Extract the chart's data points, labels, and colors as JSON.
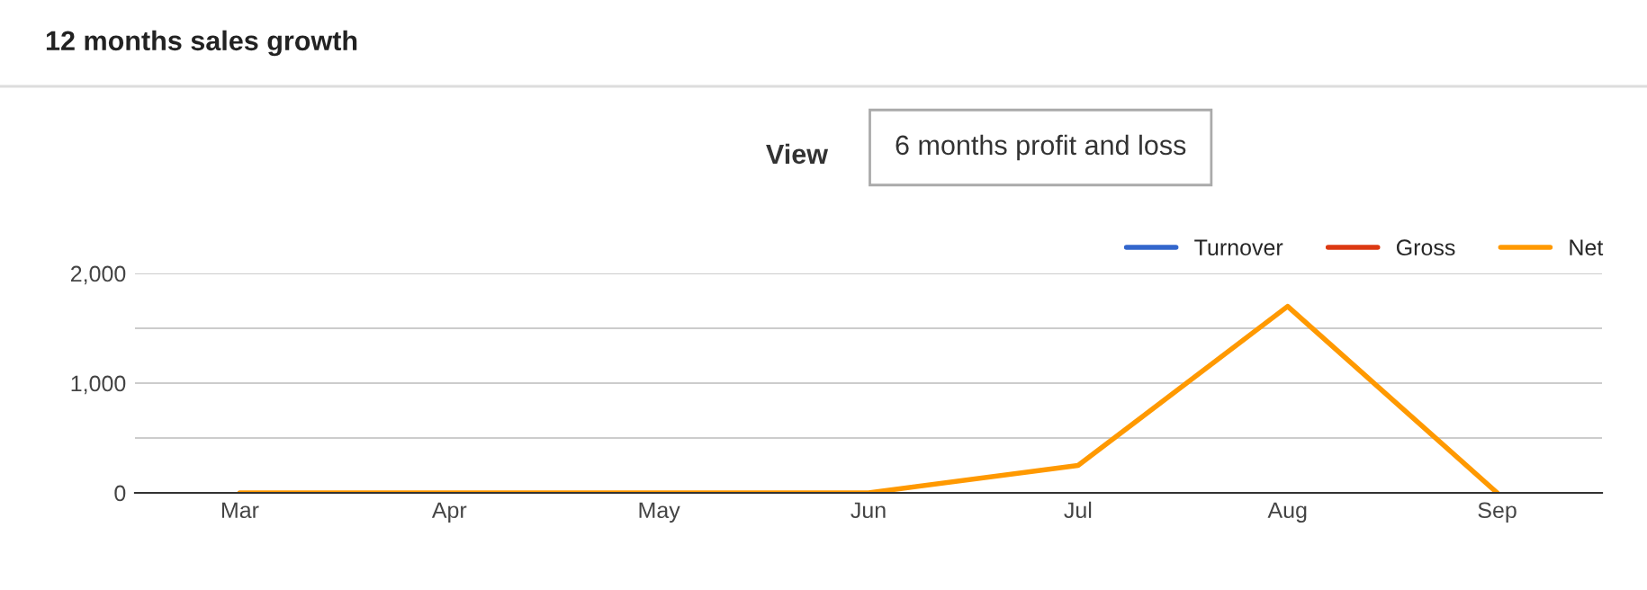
{
  "chart_data": {
    "type": "line",
    "title": "12 months sales growth",
    "annotations": [
      "View",
      "6 months profit and loss"
    ],
    "categories": [
      "Mar",
      "Apr",
      "May",
      "Jun",
      "Jul",
      "Aug",
      "Sep"
    ],
    "series": [
      {
        "name": "Turnover",
        "color": "#3366cc",
        "values": [
          null,
          null,
          null,
          null,
          null,
          null,
          null
        ]
      },
      {
        "name": "Gross",
        "color": "#dc3912",
        "values": [
          null,
          null,
          null,
          null,
          null,
          null,
          null
        ]
      },
      {
        "name": "Net",
        "color": "#ff9900",
        "values": [
          0,
          0,
          0,
          0,
          250,
          1700,
          0
        ]
      }
    ],
    "ylim": [
      0,
      2000
    ],
    "yticks": [
      0,
      {
        "value": 500,
        "label": null
      },
      {
        "value": 1000,
        "label": "1,000"
      },
      {
        "value": 1500,
        "label": null
      },
      {
        "value": 2000,
        "label": "2,000"
      }
    ],
    "grid": "y",
    "legend": "top right",
    "marker": "none",
    "line_style": "solid"
  }
}
